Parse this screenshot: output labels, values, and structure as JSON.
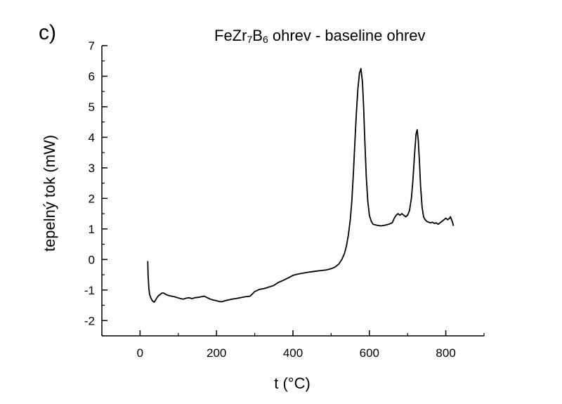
{
  "panel_label": "c)",
  "chart_data": {
    "type": "line",
    "title": {
      "prefix": "FeZr",
      "sub1": "7",
      "mid": "B",
      "sub2": "6",
      "suffix": " ohrev - baseline ohrev"
    },
    "xlabel": "t (°C)",
    "ylabel": "tepelný tok (mW)",
    "xlim": [
      -100,
      900
    ],
    "ylim": [
      -2.5,
      7
    ],
    "x_ticks": [
      0,
      200,
      400,
      600,
      800
    ],
    "y_ticks": [
      -2,
      -1,
      0,
      1,
      2,
      3,
      4,
      5,
      6,
      7
    ],
    "x_minor_step": 100,
    "y_minor_step": 0.5,
    "line_color": "#000000",
    "series": [
      {
        "x": [
          20,
          21,
          23,
          25,
          28,
          32,
          37,
          42,
          47,
          52,
          57,
          62,
          68,
          75,
          82,
          90,
          98,
          106,
          113,
          120,
          128,
          136,
          144,
          152,
          160,
          168,
          176,
          184,
          192,
          200,
          208,
          215,
          222,
          230,
          240,
          250,
          262,
          275,
          288,
          300,
          312,
          325,
          338,
          350,
          362,
          375,
          388,
          400,
          412,
          425,
          438,
          450,
          462,
          475,
          488,
          500,
          510,
          520,
          528,
          535,
          540,
          545,
          550,
          554,
          558,
          562,
          566,
          570,
          574,
          578,
          582,
          585,
          588,
          592,
          596,
          600,
          605,
          610,
          620,
          630,
          640,
          650,
          660,
          665,
          670,
          675,
          680,
          685,
          690,
          695,
          700,
          705,
          710,
          714,
          718,
          722,
          725,
          728,
          731,
          734,
          738,
          742,
          746,
          750,
          755,
          760,
          765,
          770,
          775,
          780,
          785,
          790,
          795,
          800,
          805,
          810,
          812,
          815,
          818,
          820
        ],
        "y": [
          -0.05,
          -0.5,
          -0.95,
          -1.15,
          -1.25,
          -1.35,
          -1.4,
          -1.3,
          -1.2,
          -1.15,
          -1.1,
          -1.1,
          -1.15,
          -1.18,
          -1.2,
          -1.22,
          -1.25,
          -1.28,
          -1.3,
          -1.27,
          -1.25,
          -1.28,
          -1.25,
          -1.24,
          -1.22,
          -1.2,
          -1.25,
          -1.3,
          -1.33,
          -1.35,
          -1.38,
          -1.38,
          -1.35,
          -1.33,
          -1.3,
          -1.28,
          -1.25,
          -1.22,
          -1.2,
          -1.05,
          -0.98,
          -0.95,
          -0.9,
          -0.85,
          -0.75,
          -0.68,
          -0.6,
          -0.52,
          -0.48,
          -0.45,
          -0.42,
          -0.4,
          -0.38,
          -0.36,
          -0.34,
          -0.3,
          -0.25,
          -0.15,
          0.0,
          0.2,
          0.45,
          0.8,
          1.3,
          1.9,
          2.8,
          3.8,
          4.8,
          5.6,
          6.1,
          6.25,
          5.8,
          5.0,
          3.9,
          2.7,
          1.9,
          1.45,
          1.25,
          1.15,
          1.12,
          1.1,
          1.12,
          1.15,
          1.2,
          1.35,
          1.45,
          1.5,
          1.45,
          1.5,
          1.45,
          1.4,
          1.45,
          1.6,
          2.0,
          2.6,
          3.4,
          4.1,
          4.25,
          3.9,
          3.2,
          2.4,
          1.7,
          1.4,
          1.3,
          1.25,
          1.22,
          1.2,
          1.22,
          1.18,
          1.2,
          1.15,
          1.2,
          1.25,
          1.3,
          1.35,
          1.3,
          1.35,
          1.4,
          1.3,
          1.2,
          1.1
        ]
      }
    ]
  }
}
